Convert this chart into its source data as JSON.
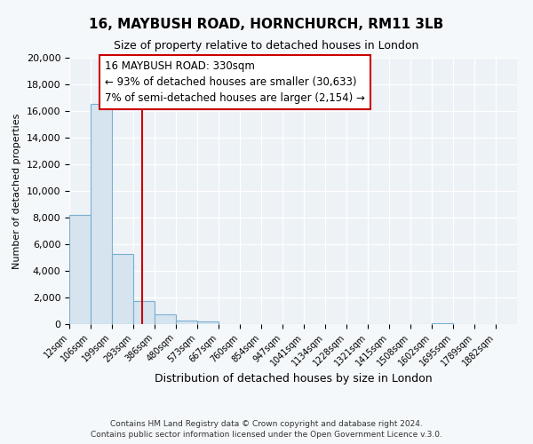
{
  "title_line1": "16, MAYBUSH ROAD, HORNCHURCH, RM11 3LB",
  "title_line2": "Size of property relative to detached houses in London",
  "xlabel": "Distribution of detached houses by size in London",
  "ylabel": "Number of detached properties",
  "bar_color": "#d6e4f0",
  "bar_edge_color": "#7aaed0",
  "bin_labels": [
    "12sqm",
    "106sqm",
    "199sqm",
    "293sqm",
    "386sqm",
    "480sqm",
    "573sqm",
    "667sqm",
    "760sqm",
    "854sqm",
    "947sqm",
    "1041sqm",
    "1134sqm",
    "1228sqm",
    "1321sqm",
    "1415sqm",
    "1508sqm",
    "1602sqm",
    "1695sqm",
    "1789sqm",
    "1882sqm"
  ],
  "bar_heights": [
    8200,
    16500,
    5300,
    1750,
    750,
    250,
    200,
    0,
    0,
    0,
    0,
    0,
    0,
    0,
    0,
    0,
    0,
    100,
    0,
    0,
    0
  ],
  "ylim": [
    0,
    20000
  ],
  "yticks": [
    0,
    2000,
    4000,
    6000,
    8000,
    10000,
    12000,
    14000,
    16000,
    18000,
    20000
  ],
  "vline_color": "#cc0000",
  "annotation_title": "16 MAYBUSH ROAD: 330sqm",
  "annotation_line2": "← 93% of detached houses are smaller (30,633)",
  "annotation_line3": "7% of semi-detached houses are larger (2,154) →",
  "annotation_box_color": "#ffffff",
  "annotation_box_edge": "#cc0000",
  "footer_line1": "Contains HM Land Registry data © Crown copyright and database right 2024.",
  "footer_line2": "Contains public sector information licensed under the Open Government Licence v.3.0.",
  "background_color": "#f5f8fa",
  "plot_bg_color": "#edf2f7",
  "grid_color": "#ffffff"
}
